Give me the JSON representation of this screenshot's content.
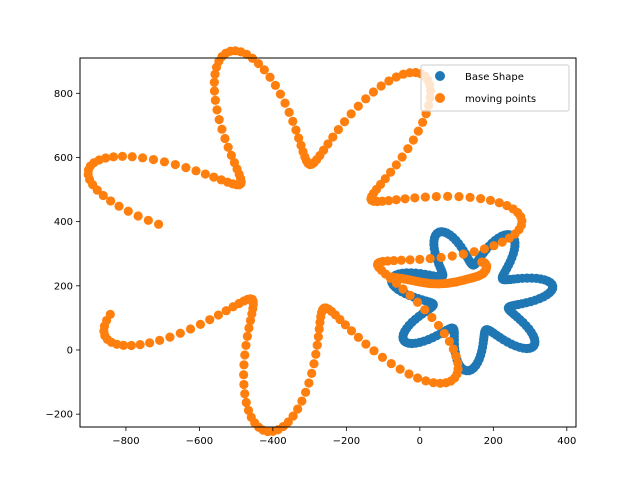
{
  "chart_data": {
    "type": "scatter",
    "title": "",
    "xlabel": "",
    "ylabel": "",
    "xlim": [
      -925,
      425
    ],
    "ylim": [
      -240,
      910
    ],
    "x_ticks": [
      -800,
      -600,
      -400,
      -200,
      0,
      200,
      400
    ],
    "y_ticks": [
      -200,
      0,
      200,
      400,
      600,
      800
    ],
    "x_tick_labels": [
      "−800",
      "−600",
      "−400",
      "−200",
      "0",
      "200",
      "400"
    ],
    "y_tick_labels": [
      "−200",
      "0",
      "200",
      "400",
      "600",
      "800"
    ],
    "grid": false,
    "legend_position": "top-right",
    "series": [
      {
        "name": "Base Shape",
        "color": "#1f77b4",
        "shape": {
          "center": [
            140,
            160
          ],
          "petals": 7,
          "base_radius": 165,
          "amplitude": 60,
          "rotation_deg": 10,
          "points": 220
        }
      },
      {
        "name": "moving points",
        "color": "#ff7f0e",
        "shape": {
          "center": [
            -330,
            350
          ],
          "petals": 7,
          "base_radius": 420,
          "amplitude": 190,
          "rotation_deg": 5,
          "points": 260,
          "start_angle_deg": 205,
          "sweep_deg": 330
        },
        "overlap_arc": [
          [
            -82,
            228
          ],
          [
            -62,
            225
          ],
          [
            -40,
            221
          ],
          [
            -18,
            216
          ],
          [
            4,
            211
          ],
          [
            28,
            207
          ],
          [
            52,
            206
          ],
          [
            76,
            208
          ],
          [
            98,
            212
          ],
          [
            120,
            218
          ],
          [
            140,
            224
          ],
          [
            158,
            230
          ],
          [
            172,
            238
          ],
          [
            180,
            250
          ],
          [
            182,
            262
          ],
          [
            176,
            272
          ],
          [
            165,
            275
          ]
        ]
      }
    ]
  }
}
